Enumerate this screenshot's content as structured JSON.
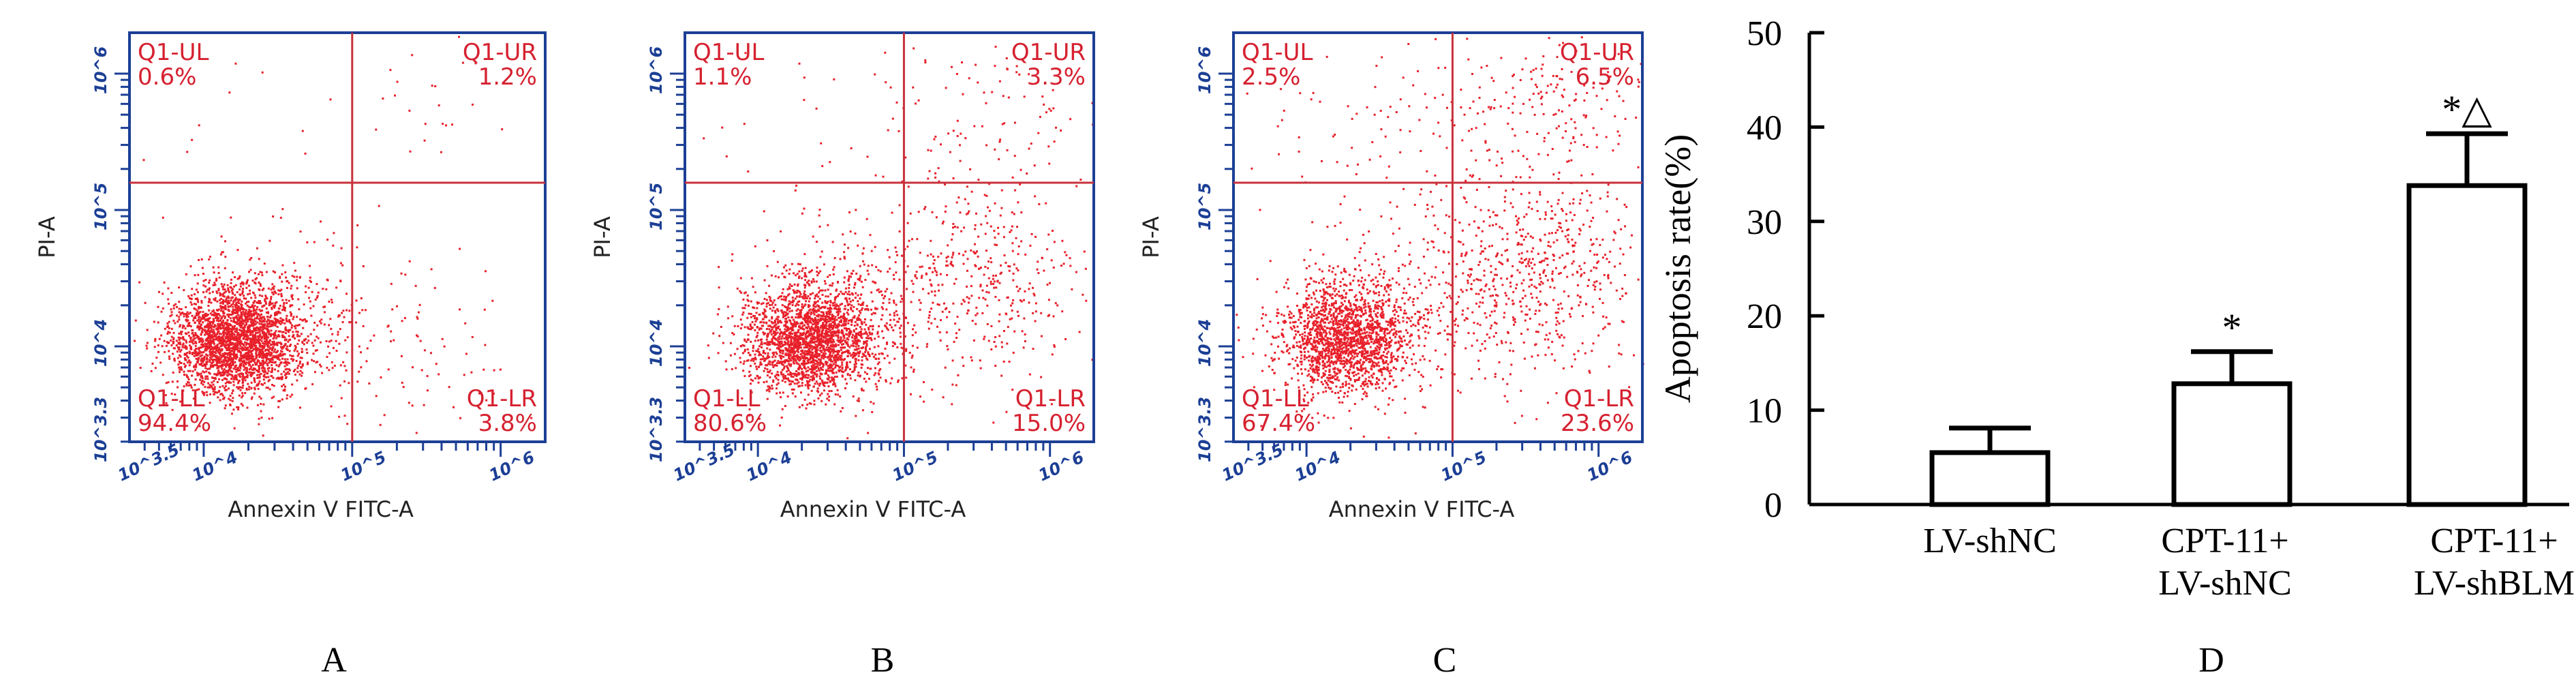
{
  "panels": [
    {
      "letter": "A"
    },
    {
      "letter": "B"
    },
    {
      "letter": "C"
    },
    {
      "letter": "D"
    }
  ],
  "chart_data": [
    {
      "type": "scatter",
      "panel": "A",
      "xlabel": "Annexin V FITC-A",
      "ylabel": "PI-A",
      "x_ticks": [
        "10^3.5",
        "10^4",
        "10^5",
        "10^6"
      ],
      "y_ticks": [
        "10^3.3",
        "10^4",
        "10^5",
        "10^6"
      ],
      "x_scale": "log",
      "y_scale": "log",
      "xlim": [
        3.5,
        6.3
      ],
      "ylim": [
        3.3,
        6.3
      ],
      "gate": {
        "x": 5.0,
        "y": 5.2
      },
      "quadrants": [
        {
          "id": "UL",
          "label": "Q1-UL",
          "percent": "0.6%"
        },
        {
          "id": "UR",
          "label": "Q1-UR",
          "percent": "1.2%"
        },
        {
          "id": "LL",
          "label": "Q1-LL",
          "percent": "94.4%"
        },
        {
          "id": "LR",
          "label": "Q1-LR",
          "percent": "3.8%"
        }
      ],
      "clusters": [
        {
          "cx": 4.2,
          "cy": 4.05,
          "sx": 0.22,
          "sy": 0.2,
          "n": 2600
        },
        {
          "cx": 4.55,
          "cy": 4.2,
          "sx": 0.35,
          "sy": 0.3,
          "n": 300
        },
        {
          "cx": 5.5,
          "cy": 4.0,
          "sx": 0.35,
          "sy": 0.35,
          "n": 70
        },
        {
          "cx": 5.5,
          "cy": 5.8,
          "sx": 0.35,
          "sy": 0.3,
          "n": 25
        },
        {
          "cx": 4.2,
          "cy": 5.7,
          "sx": 0.4,
          "sy": 0.35,
          "n": 12
        }
      ],
      "point_color": "#e8202a",
      "gate_color": "#c8323c",
      "axis_color": "#1c3f95",
      "label_color": "#d62130"
    },
    {
      "type": "scatter",
      "panel": "B",
      "xlabel": "Annexin V FITC-A",
      "ylabel": "PI-A",
      "x_ticks": [
        "10^3.5",
        "10^4",
        "10^5",
        "10^6"
      ],
      "y_ticks": [
        "10^3.3",
        "10^4",
        "10^5",
        "10^6"
      ],
      "x_scale": "log",
      "y_scale": "log",
      "xlim": [
        3.5,
        6.3
      ],
      "ylim": [
        3.3,
        6.3
      ],
      "gate": {
        "x": 5.0,
        "y": 5.2
      },
      "quadrants": [
        {
          "id": "UL",
          "label": "Q1-UL",
          "percent": "1.1%"
        },
        {
          "id": "UR",
          "label": "Q1-UR",
          "percent": "3.3%"
        },
        {
          "id": "LL",
          "label": "Q1-LL",
          "percent": "80.6%"
        },
        {
          "id": "LR",
          "label": "Q1-LR",
          "percent": "15.0%"
        }
      ],
      "clusters": [
        {
          "cx": 4.35,
          "cy": 4.05,
          "sx": 0.22,
          "sy": 0.2,
          "n": 2200
        },
        {
          "cx": 4.6,
          "cy": 4.3,
          "sx": 0.35,
          "sy": 0.3,
          "n": 300
        },
        {
          "cx": 5.55,
          "cy": 4.5,
          "sx": 0.4,
          "sy": 0.38,
          "n": 420
        },
        {
          "cx": 5.6,
          "cy": 5.75,
          "sx": 0.35,
          "sy": 0.3,
          "n": 90
        },
        {
          "cx": 4.3,
          "cy": 5.6,
          "sx": 0.45,
          "sy": 0.4,
          "n": 30
        }
      ],
      "point_color": "#e8202a",
      "gate_color": "#c8323c",
      "axis_color": "#1c3f95",
      "label_color": "#d62130"
    },
    {
      "type": "scatter",
      "panel": "C",
      "xlabel": "Annexin V FITC-A",
      "ylabel": "PI-A",
      "x_ticks": [
        "10^3.5",
        "10^4",
        "10^5",
        "10^6"
      ],
      "y_ticks": [
        "10^3.3",
        "10^4",
        "10^5",
        "10^6"
      ],
      "x_scale": "log",
      "y_scale": "log",
      "xlim": [
        3.5,
        6.3
      ],
      "ylim": [
        3.3,
        6.3
      ],
      "gate": {
        "x": 5.0,
        "y": 5.2
      },
      "quadrants": [
        {
          "id": "UL",
          "label": "Q1-UL",
          "percent": "2.5%"
        },
        {
          "id": "UR",
          "label": "Q1-UR",
          "percent": "6.5%"
        },
        {
          "id": "LL",
          "label": "Q1-LL",
          "percent": "67.4%"
        },
        {
          "id": "LR",
          "label": "Q1-LR",
          "percent": "23.6%"
        }
      ],
      "clusters": [
        {
          "cx": 4.25,
          "cy": 4.05,
          "sx": 0.22,
          "sy": 0.2,
          "n": 1700
        },
        {
          "cx": 4.55,
          "cy": 4.3,
          "sx": 0.35,
          "sy": 0.32,
          "n": 300
        },
        {
          "cx": 5.55,
          "cy": 4.55,
          "sx": 0.4,
          "sy": 0.4,
          "n": 650
        },
        {
          "cx": 5.6,
          "cy": 5.75,
          "sx": 0.35,
          "sy": 0.3,
          "n": 190
        },
        {
          "cx": 4.3,
          "cy": 5.6,
          "sx": 0.45,
          "sy": 0.4,
          "n": 70
        }
      ],
      "point_color": "#e8202a",
      "gate_color": "#c8323c",
      "axis_color": "#1c3f95",
      "label_color": "#d62130"
    },
    {
      "type": "bar",
      "panel": "D",
      "ylabel": "Apoptosis rate(%)",
      "ylim": [
        0,
        50
      ],
      "yticks": [
        0,
        10,
        20,
        30,
        40,
        50
      ],
      "categories": [
        [
          "LV-shNC"
        ],
        [
          "CPT-11+",
          "LV-shNC"
        ],
        [
          "CPT-11+",
          "LV-shBLM"
        ]
      ],
      "values": [
        5.5,
        12.8,
        33.8
      ],
      "errors": [
        2.6,
        3.4,
        5.5
      ],
      "annotations": [
        "",
        "*",
        "*△"
      ],
      "bar_fill": "#ffffff",
      "bar_stroke": "#000000"
    }
  ]
}
